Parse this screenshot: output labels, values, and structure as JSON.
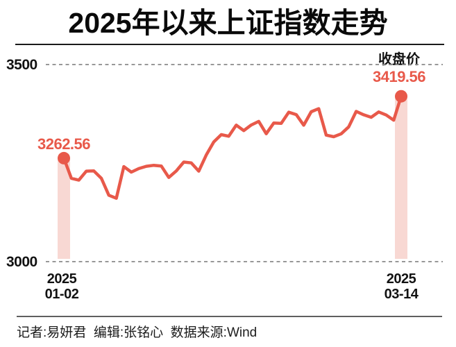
{
  "title": "2025年以来上证指数走势",
  "legend_label": "收盘价",
  "colors": {
    "line": "#E8594A",
    "band": "#F8D8D3",
    "grid": "#8A8A8A",
    "text": "#121212"
  },
  "y_axis": {
    "max_label": "3500",
    "min_label": "3000"
  },
  "start_point": {
    "value_label": "3262.56",
    "date_line1": "2025",
    "date_line2": "01-02"
  },
  "end_point": {
    "value_label": "3419.56",
    "date_line1": "2025",
    "date_line2": "03-14"
  },
  "footer": {
    "credits": "记者:易妍君  编辑:张铭心  数据来源:Wind"
  },
  "chart_data": {
    "type": "line",
    "title": "2025年以来上证指数走势",
    "series_name": "收盘价",
    "xlabel": "",
    "ylabel": "",
    "ylim": [
      3000,
      3500
    ],
    "gridlines": [
      3500,
      3000
    ],
    "grid_style": "dashed",
    "x": [
      "01-02",
      "01-03",
      "01-06",
      "01-07",
      "01-08",
      "01-09",
      "01-10",
      "01-13",
      "01-14",
      "01-15",
      "01-16",
      "01-17",
      "01-20",
      "01-21",
      "01-22",
      "01-23",
      "01-24",
      "01-27",
      "02-05",
      "02-06",
      "02-07",
      "02-10",
      "02-11",
      "02-12",
      "02-13",
      "02-14",
      "02-17",
      "02-18",
      "02-19",
      "02-20",
      "02-21",
      "02-24",
      "02-25",
      "02-26",
      "02-27",
      "02-28",
      "03-03",
      "03-04",
      "03-05",
      "03-06",
      "03-07",
      "03-10",
      "03-11",
      "03-12",
      "03-13",
      "03-14"
    ],
    "y": [
      3262.56,
      3211.43,
      3206.92,
      3229.64,
      3230.17,
      3211.39,
      3168.52,
      3160.76,
      3240.94,
      3227.12,
      3236.03,
      3241.82,
      3244.38,
      3242.62,
      3213.62,
      3230.16,
      3252.63,
      3250.6,
      3229.49,
      3270.66,
      3303.67,
      3322.17,
      3318.06,
      3346.39,
      3332.48,
      3346.72,
      3355.83,
      3324.49,
      3351.54,
      3350.78,
      3379.11,
      3373.03,
      3346.04,
      3380.21,
      3388.06,
      3320.9,
      3316.93,
      3324.21,
      3341.96,
      3381.1,
      3372.55,
      3366.16,
      3379.83,
      3371.92,
      3358.73,
      3419.56
    ],
    "annotated_points": [
      {
        "x": "01-02",
        "y": 3262.56,
        "label": "3262.56"
      },
      {
        "x": "03-14",
        "y": 3419.56,
        "label": "3419.56"
      }
    ]
  }
}
